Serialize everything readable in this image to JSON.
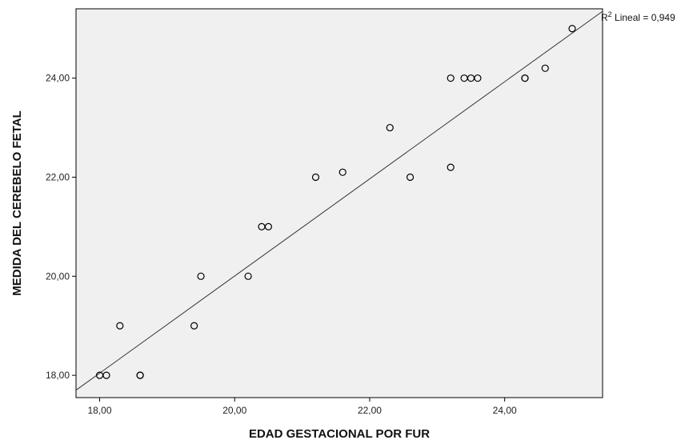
{
  "chart_data": {
    "type": "scatter",
    "xlabel": "EDAD GESTACIONAL POR FUR",
    "ylabel": "MEDIDA DEL CEREBELO FETAL",
    "xlim": [
      17.65,
      25.45
    ],
    "ylim": [
      17.55,
      25.4
    ],
    "xticks": [
      "18,00",
      "20,00",
      "22,00",
      "24,00"
    ],
    "xtick_values": [
      18,
      20,
      22,
      24
    ],
    "yticks": [
      "18,00",
      "20,00",
      "22,00",
      "24,00"
    ],
    "ytick_values": [
      18,
      20,
      22,
      24
    ],
    "grid": false,
    "points": [
      {
        "x": 18.0,
        "y": 18.0
      },
      {
        "x": 18.1,
        "y": 18.0
      },
      {
        "x": 18.3,
        "y": 19.0
      },
      {
        "x": 18.6,
        "y": 18.0
      },
      {
        "x": 18.6,
        "y": 18.0
      },
      {
        "x": 19.4,
        "y": 19.0
      },
      {
        "x": 19.5,
        "y": 20.0
      },
      {
        "x": 20.2,
        "y": 20.0
      },
      {
        "x": 20.4,
        "y": 21.0
      },
      {
        "x": 20.5,
        "y": 21.0
      },
      {
        "x": 21.2,
        "y": 22.0
      },
      {
        "x": 21.6,
        "y": 22.1
      },
      {
        "x": 22.3,
        "y": 23.0
      },
      {
        "x": 22.6,
        "y": 22.0
      },
      {
        "x": 23.2,
        "y": 22.2
      },
      {
        "x": 23.2,
        "y": 24.0
      },
      {
        "x": 23.4,
        "y": 24.0
      },
      {
        "x": 23.5,
        "y": 24.0
      },
      {
        "x": 23.6,
        "y": 24.0
      },
      {
        "x": 24.3,
        "y": 24.0
      },
      {
        "x": 24.3,
        "y": 24.0
      },
      {
        "x": 24.6,
        "y": 24.2
      },
      {
        "x": 25.0,
        "y": 25.0
      }
    ],
    "fit_line": {
      "x": [
        17.65,
        25.45
      ],
      "y": [
        17.7,
        25.35
      ]
    },
    "fit_label": {
      "prefix": "R",
      "sup": "2",
      "text": " Lineal = 0,949"
    },
    "colors": {
      "plot_bg": "#f0f0f0",
      "frame": "#000000",
      "marker": "#000000",
      "line": "#333333"
    }
  }
}
